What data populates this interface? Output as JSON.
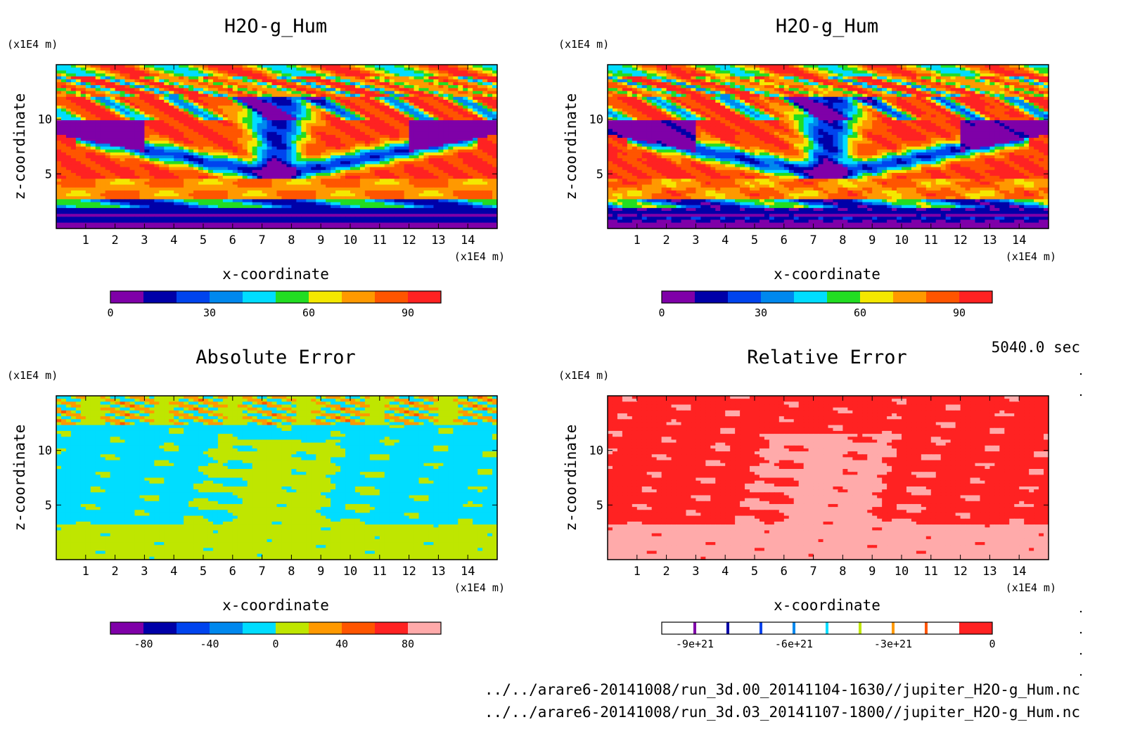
{
  "chart_data": [
    {
      "type": "heatmap",
      "title": "H2O-g_Hum",
      "xlabel": "x-coordinate",
      "ylabel": "z-coordinate",
      "x_unit": "(x1E4 m)",
      "y_unit": "(x1E4 m)",
      "xlim": [
        0,
        15
      ],
      "ylim": [
        0,
        15
      ],
      "x_ticks": [
        "1",
        "2",
        "3",
        "4",
        "5",
        "6",
        "7",
        "8",
        "9",
        "10",
        "11",
        "12",
        "13",
        "14"
      ],
      "y_ticks": [
        "5",
        "10"
      ],
      "field": "model-A",
      "colorbar": {
        "levels": [
          0,
          10,
          20,
          30,
          40,
          50,
          60,
          70,
          80,
          90,
          100
        ],
        "colors": [
          "#7f00a8",
          "#0000a8",
          "#0044ee",
          "#0088ee",
          "#00ddff",
          "#22dd22",
          "#f4e800",
          "#ff9900",
          "#ff5500",
          "#ff2222"
        ],
        "labels": [
          "0",
          "30",
          "60",
          "90"
        ]
      }
    },
    {
      "type": "heatmap",
      "title": "H2O-g_Hum",
      "xlabel": "x-coordinate",
      "ylabel": "z-coordinate",
      "x_unit": "(x1E4 m)",
      "y_unit": "(x1E4 m)",
      "xlim": [
        0,
        15
      ],
      "ylim": [
        0,
        15
      ],
      "x_ticks": [
        "1",
        "2",
        "3",
        "4",
        "5",
        "6",
        "7",
        "8",
        "9",
        "10",
        "11",
        "12",
        "13",
        "14"
      ],
      "y_ticks": [
        "5",
        "10"
      ],
      "field": "model-B",
      "colorbar": {
        "levels": [
          0,
          10,
          20,
          30,
          40,
          50,
          60,
          70,
          80,
          90,
          100
        ],
        "colors": [
          "#7f00a8",
          "#0000a8",
          "#0044ee",
          "#0088ee",
          "#00ddff",
          "#22dd22",
          "#f4e800",
          "#ff9900",
          "#ff5500",
          "#ff2222"
        ],
        "labels": [
          "0",
          "30",
          "60",
          "90"
        ]
      }
    },
    {
      "type": "heatmap",
      "title": "Absolute Error",
      "xlabel": "x-coordinate",
      "ylabel": "z-coordinate",
      "x_unit": "(x1E4 m)",
      "y_unit": "(x1E4 m)",
      "xlim": [
        0,
        15
      ],
      "ylim": [
        0,
        15
      ],
      "x_ticks": [
        "1",
        "2",
        "3",
        "4",
        "5",
        "6",
        "7",
        "8",
        "9",
        "10",
        "11",
        "12",
        "13",
        "14"
      ],
      "y_ticks": [
        "5",
        "10"
      ],
      "field": "abs-error",
      "colorbar": {
        "levels": [
          -100,
          -80,
          -60,
          -40,
          -20,
          0,
          20,
          40,
          60,
          80,
          100
        ],
        "colors": [
          "#7f00a8",
          "#0000a8",
          "#0044ee",
          "#0088ee",
          "#00ddff",
          "#bfe600",
          "#ff9900",
          "#ff5500",
          "#ff2222",
          "#ffaaaa"
        ],
        "labels": [
          "-80",
          "-40",
          "0",
          "40",
          "80"
        ]
      }
    },
    {
      "type": "heatmap",
      "title": "Relative Error",
      "xlabel": "x-coordinate",
      "ylabel": "z-coordinate",
      "x_unit": "(x1E4 m)",
      "y_unit": "(x1E4 m)",
      "xlim": [
        0,
        15
      ],
      "ylim": [
        0,
        15
      ],
      "x_ticks": [
        "1",
        "2",
        "3",
        "4",
        "5",
        "6",
        "7",
        "8",
        "9",
        "10",
        "11",
        "12",
        "13",
        "14"
      ],
      "y_ticks": [
        "5",
        "10"
      ],
      "field": "rel-error",
      "colorbar": {
        "levels": [
          -1e+22,
          -9e+21,
          -8e+21,
          -7e+21,
          -6e+21,
          -5e+21,
          -4e+21,
          -3e+21,
          -2e+21,
          -1e+21,
          0
        ],
        "colors": [
          "#ffffff",
          "#ffffff",
          "#ffffff",
          "#ffffff",
          "#ffffff",
          "#ffffff",
          "#ffffff",
          "#ffffff",
          "#ffffff",
          "#ff2222"
        ],
        "boundary_colors": [
          "#7f00a8",
          "#0000a8",
          "#0044ee",
          "#0088ee",
          "#00ddff",
          "#bfe600",
          "#ff9900",
          "#ff5500"
        ],
        "labels": [
          "-9e+21",
          "-6e+21",
          "-3e+21",
          "0"
        ]
      }
    }
  ],
  "time_label": "5040.0 sec",
  "file_paths": [
    "../../arare6-20141008/run_3d.00_20141104-1630//jupiter_H2O-g_Hum.nc",
    "../../arare6-20141008/run_3d.03_20141107-1800//jupiter_H2O-g_Hum.nc"
  ]
}
